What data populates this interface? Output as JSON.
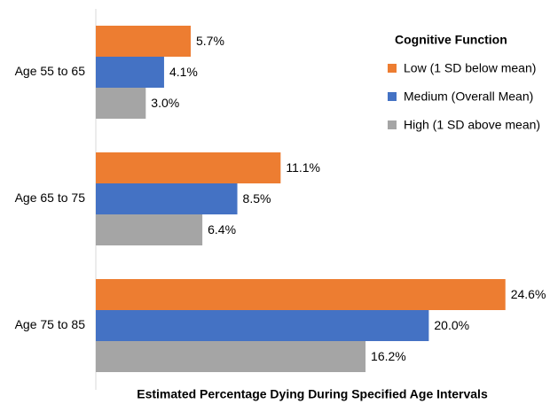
{
  "chart_data": {
    "type": "hbar",
    "x_label": "Estimated Percentage Dying During Specified Age Intervals",
    "legend_title": "Cognitive Function",
    "legend_position": "upper right",
    "categories": [
      "Age 55 to 65",
      "Age 65 to 75",
      "Age 75 to 85"
    ],
    "series": [
      {
        "name": "Low (1 SD below mean)",
        "color": "#ED7D31",
        "values": [
          5.7,
          11.1,
          24.6
        ],
        "value_labels": [
          "5.7%",
          "11.1%",
          "24.6%"
        ]
      },
      {
        "name": "Medium (Overall Mean)",
        "color": "#4472C4",
        "values": [
          4.1,
          8.5,
          20.0
        ],
        "value_labels": [
          "4.1%",
          "8.5%",
          "20.0%"
        ]
      },
      {
        "name": "High (1 SD above mean)",
        "color": "#A5A5A5",
        "values": [
          3.0,
          6.4,
          16.2
        ],
        "value_labels": [
          "3.0%",
          "6.4%",
          "16.2%"
        ]
      }
    ],
    "xlim": [
      0,
      26
    ]
  }
}
